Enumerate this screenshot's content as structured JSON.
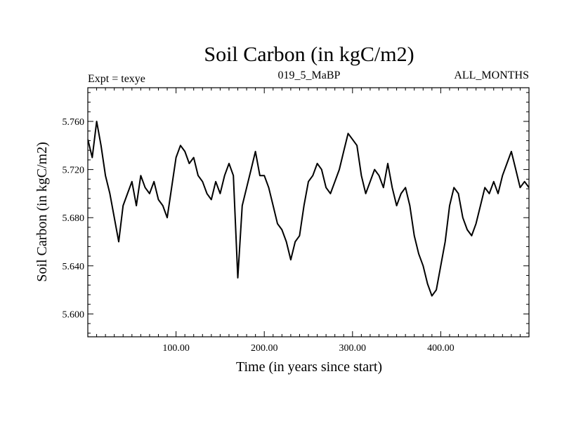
{
  "chart_data": {
    "type": "line",
    "title": "Soil Carbon (in kgC/m2)",
    "subtitle_left": "Expt = texye",
    "subtitle_center": "019_5_MaBP",
    "subtitle_right": "ALL_MONTHS",
    "xlabel": "Time (in years since start)",
    "ylabel": "Soil Carbon (in kgC/m2)",
    "xlim": [
      0,
      500
    ],
    "ylim": [
      5.581,
      5.788
    ],
    "x_ticks": [
      100,
      200,
      300,
      400
    ],
    "x_tick_labels": [
      "100.00",
      "200.00",
      "300.00",
      "400.00"
    ],
    "y_ticks": [
      5.6,
      5.64,
      5.68,
      5.72,
      5.76
    ],
    "y_tick_labels": [
      "5.600",
      "5.640",
      "5.680",
      "5.720",
      "5.760"
    ],
    "grid": false,
    "series": [
      {
        "color": "#000000",
        "x": [
          0,
          5,
          10,
          15,
          20,
          25,
          30,
          35,
          40,
          45,
          50,
          55,
          60,
          65,
          70,
          75,
          80,
          85,
          90,
          95,
          100,
          105,
          110,
          115,
          120,
          125,
          130,
          135,
          140,
          145,
          150,
          155,
          160,
          165,
          170,
          175,
          180,
          185,
          190,
          195,
          200,
          205,
          210,
          215,
          220,
          225,
          230,
          235,
          240,
          245,
          250,
          255,
          260,
          265,
          270,
          275,
          280,
          285,
          290,
          295,
          300,
          305,
          310,
          315,
          320,
          325,
          330,
          335,
          340,
          345,
          350,
          355,
          360,
          365,
          370,
          375,
          380,
          385,
          390,
          395,
          400,
          405,
          410,
          415,
          420,
          425,
          430,
          435,
          440,
          445,
          450,
          455,
          460,
          465,
          470,
          475,
          480,
          485,
          490,
          495,
          500
        ],
        "y": [
          5.745,
          5.73,
          5.76,
          5.74,
          5.715,
          5.7,
          5.68,
          5.66,
          5.69,
          5.7,
          5.71,
          5.69,
          5.715,
          5.705,
          5.7,
          5.71,
          5.695,
          5.69,
          5.68,
          5.705,
          5.73,
          5.74,
          5.735,
          5.725,
          5.73,
          5.715,
          5.71,
          5.7,
          5.695,
          5.71,
          5.7,
          5.715,
          5.725,
          5.715,
          5.63,
          5.69,
          5.705,
          5.72,
          5.735,
          5.715,
          5.715,
          5.705,
          5.69,
          5.675,
          5.67,
          5.66,
          5.645,
          5.66,
          5.665,
          5.69,
          5.71,
          5.715,
          5.725,
          5.72,
          5.705,
          5.7,
          5.71,
          5.72,
          5.735,
          5.75,
          5.745,
          5.74,
          5.715,
          5.7,
          5.71,
          5.72,
          5.715,
          5.705,
          5.725,
          5.705,
          5.69,
          5.7,
          5.705,
          5.69,
          5.665,
          5.65,
          5.64,
          5.625,
          5.615,
          5.62,
          5.64,
          5.66,
          5.69,
          5.705,
          5.7,
          5.68,
          5.67,
          5.665,
          5.675,
          5.69,
          5.705,
          5.7,
          5.71,
          5.7,
          5.715,
          5.725,
          5.735,
          5.72,
          5.705,
          5.71,
          5.705
        ]
      }
    ]
  }
}
